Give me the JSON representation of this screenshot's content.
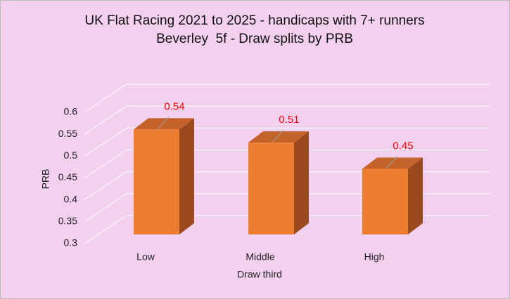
{
  "chart_data": {
    "type": "bar3d",
    "title": "UK Flat Racing 2021 to 2025 - handicaps with 7+ runners",
    "subtitle": "Beverley  5f - Draw splits by PRB",
    "x_label": "Draw third",
    "y_label": "PRB",
    "categories": [
      "Low",
      "Middle",
      "High"
    ],
    "values": [
      0.54,
      0.51,
      0.45
    ],
    "color": "#ed7d31",
    "ylim": [
      0.3,
      0.6
    ],
    "yticks": [
      0.3,
      0.35,
      0.4,
      0.45,
      0.5,
      0.55,
      0.6
    ],
    "grid": true
  }
}
